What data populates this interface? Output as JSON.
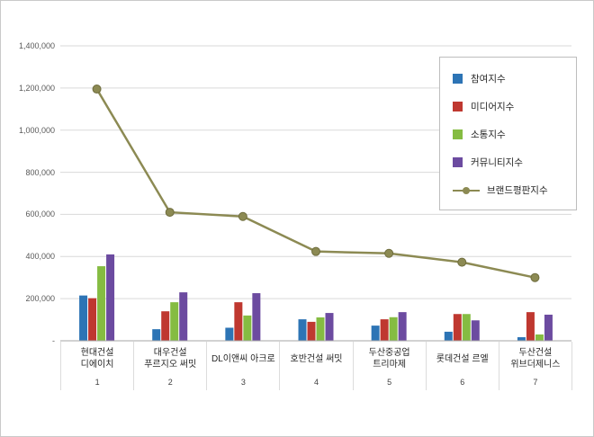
{
  "chart_data": {
    "type": "bar",
    "title": "",
    "xlabel": "",
    "ylabel": "",
    "grid": true,
    "legend_position": "top-right",
    "y_axis": {
      "min": 0,
      "max": 1400000,
      "step": 200000,
      "ticks": [
        "1,400,000",
        "1,200,000",
        "1,000,000",
        "800,000",
        "600,000",
        "400,000",
        "200,000",
        "-"
      ]
    },
    "categories": [
      {
        "label": "현대건설 디에이치",
        "lines": [
          "현대건설",
          "디에이치"
        ],
        "axis_number": "1"
      },
      {
        "label": "대우건설 푸르지오 써밋",
        "lines": [
          "대우건설",
          "푸르지오 써밋"
        ],
        "axis_number": "2"
      },
      {
        "label": "DL이앤씨 아크로",
        "lines": [
          "DL이앤씨 아크로"
        ],
        "axis_number": "3"
      },
      {
        "label": "호반건설 써밋",
        "lines": [
          "호반건설 써밋"
        ],
        "axis_number": "4"
      },
      {
        "label": "두산중공업 트리마제",
        "lines": [
          "두산중공업",
          "트리마제"
        ],
        "axis_number": "5"
      },
      {
        "label": "롯데건설 르엘",
        "lines": [
          "롯데건설 르엘"
        ],
        "axis_number": "6"
      },
      {
        "label": "두산건설 위브더제니스",
        "lines": [
          "두산건설",
          "위브더제니스"
        ],
        "axis_number": "7"
      }
    ],
    "series": [
      {
        "name": "참여지수",
        "color": "#2D74B5",
        "values": [
          215000,
          55000,
          62000,
          102000,
          72000,
          43000,
          17000
        ]
      },
      {
        "name": "미디어지수",
        "color": "#BF3830",
        "values": [
          202000,
          140000,
          183000,
          90000,
          102000,
          127000,
          136000
        ]
      },
      {
        "name": "소통지수",
        "color": "#85BC42",
        "values": [
          354000,
          183000,
          120000,
          111000,
          112000,
          127000,
          30000
        ]
      },
      {
        "name": "커뮤니티지수",
        "color": "#6C4BA0",
        "values": [
          410000,
          230000,
          226000,
          132000,
          136000,
          97000,
          124000
        ]
      }
    ],
    "line_series": {
      "name": "브랜드평판지수",
      "color": "#8C8A53",
      "marker_edge": "#6f6d3e",
      "values": [
        1195000,
        610000,
        590000,
        424000,
        415000,
        373000,
        300000
      ]
    }
  }
}
